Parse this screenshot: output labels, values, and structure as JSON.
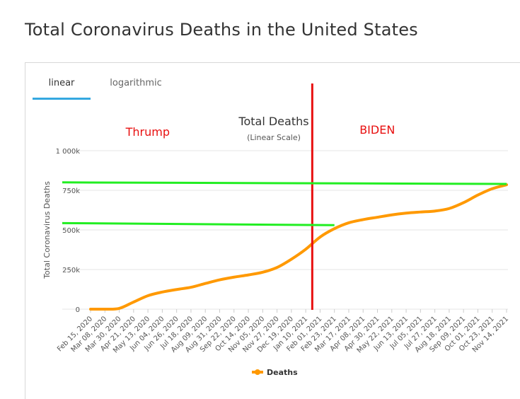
{
  "page": {
    "title": "Total Coronavirus Deaths in the United States"
  },
  "tabs": [
    {
      "label": "linear",
      "active": true
    },
    {
      "label": "logarithmic",
      "active": false
    }
  ],
  "colors": {
    "series": "#ff9900",
    "divider": "#e81010",
    "reference_lines": "#22ee22",
    "annotation": "#e81010",
    "tab_active_underline": "#35a8e0"
  },
  "chart_data": {
    "type": "line",
    "title": "Total Deaths",
    "subtitle": "(Linear Scale)",
    "ylabel": "Total Coronavirus Deaths",
    "xlabel": "",
    "ylim": [
      0,
      1000000
    ],
    "yticks": [
      {
        "value": 0,
        "label": "0"
      },
      {
        "value": 250000,
        "label": "250k"
      },
      {
        "value": 500000,
        "label": "500k"
      },
      {
        "value": 750000,
        "label": "750k"
      },
      {
        "value": 1000000,
        "label": "1 000k"
      }
    ],
    "grid": true,
    "legend": {
      "position": "bottom-center"
    },
    "categories": [
      "Feb 15, 2020",
      "Mar 08, 2020",
      "Mar 30, 2020",
      "Apr 21, 2020",
      "May 13, 2020",
      "Jun 04, 2020",
      "Jun 26, 2020",
      "Jul 18, 2020",
      "Aug 09, 2020",
      "Aug 31, 2020",
      "Sep 22, 2020",
      "Oct 14, 2020",
      "Nov 05, 2020",
      "Nov 27, 2020",
      "Dec 19, 2020",
      "Jan 10, 2021",
      "Feb 01, 2021",
      "Feb 23, 2021",
      "Mar 17, 2021",
      "Apr 08, 2021",
      "Apr 30, 2021",
      "May 22, 2021",
      "Jun 13, 2021",
      "Jul 05, 2021",
      "Jul 27, 2021",
      "Aug 18, 2021",
      "Sep 09, 2021",
      "Oct 01, 2021",
      "Oct 23, 2021",
      "Nov 14, 2021"
    ],
    "series": [
      {
        "name": "Deaths",
        "values": [
          0,
          100,
          5000,
          45000,
          85000,
          108000,
          124000,
          138000,
          162000,
          185000,
          202000,
          216000,
          233000,
          263000,
          315000,
          378000,
          455000,
          508000,
          545000,
          565000,
          580000,
          595000,
          606000,
          613000,
          619000,
          635000,
          672000,
          720000,
          760000,
          785000
        ]
      }
    ],
    "annotations": [
      {
        "text": "Thrump",
        "kind": "label",
        "x": "Apr 21, 2020",
        "y": 1115000
      },
      {
        "text": "BIDEN",
        "kind": "label",
        "x": "Apr 08, 2021",
        "y": 1130000
      },
      {
        "text": "",
        "kind": "vertical-line",
        "x": "Jan 20, 2021"
      },
      {
        "text": "",
        "kind": "trend-line",
        "from": {
          "x": "Feb 15, 2020",
          "y": 800000
        },
        "to": {
          "x": "Nov 14, 2021",
          "y": 790000
        }
      },
      {
        "text": "",
        "kind": "trend-line",
        "from": {
          "x": "Feb 15, 2020",
          "y": 543000
        },
        "to": {
          "x": "Feb 23, 2021",
          "y": 530000
        }
      }
    ]
  }
}
